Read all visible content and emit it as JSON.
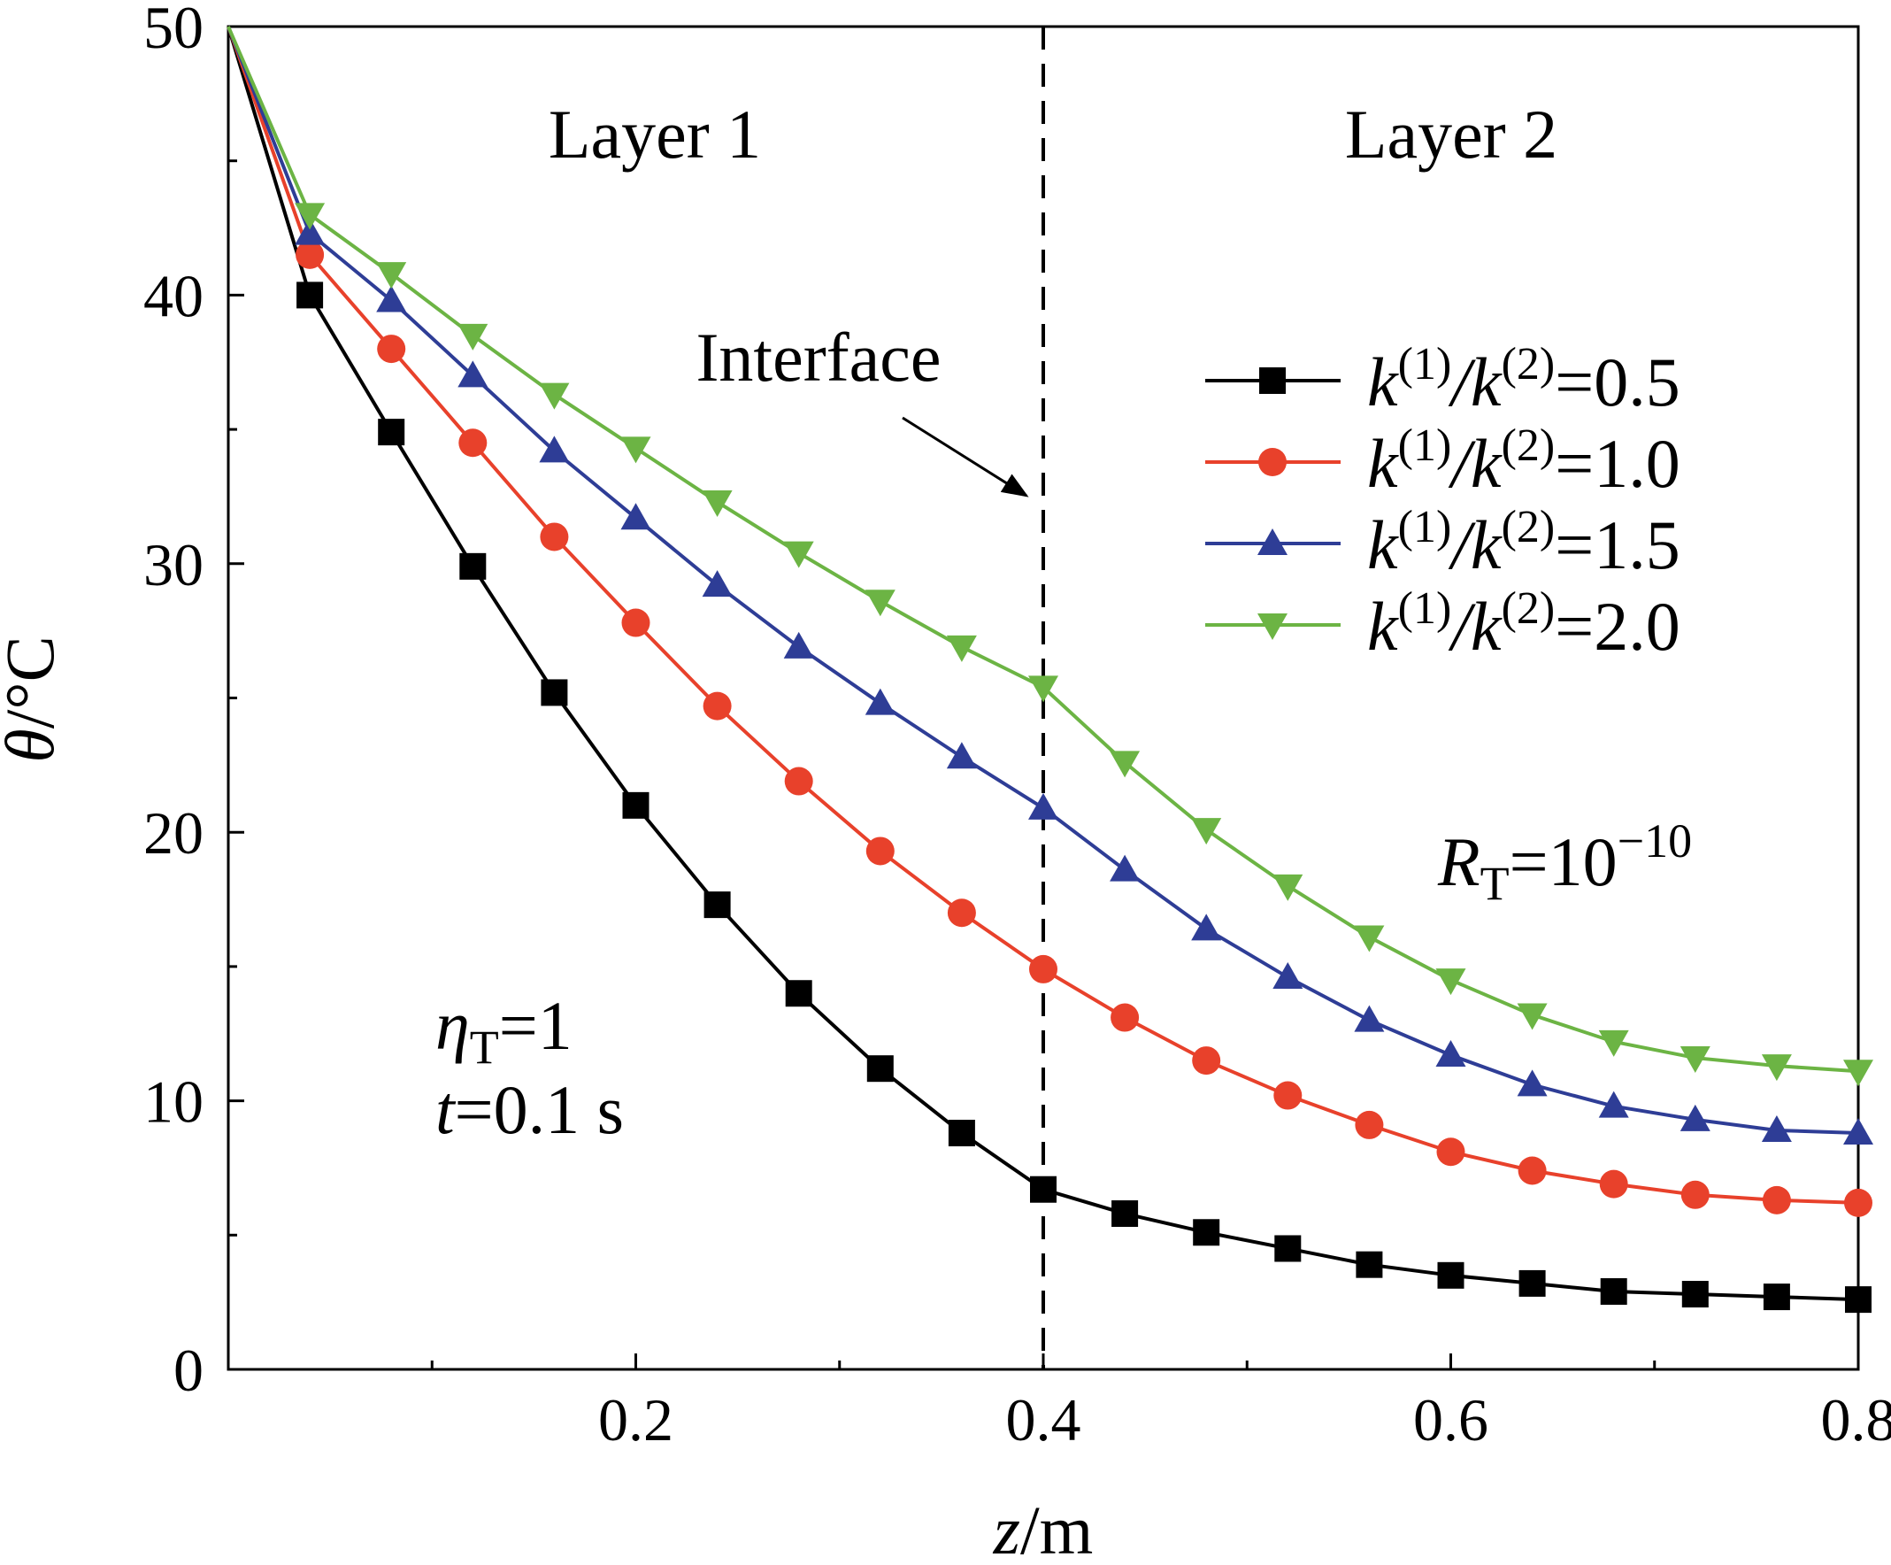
{
  "chart_data": {
    "type": "line",
    "xlim": [
      0,
      0.8
    ],
    "ylim": [
      0,
      50
    ],
    "xlabel": {
      "italic": "z",
      "rest": "/m"
    },
    "ylabel": {
      "italic": "θ",
      "rest": "/°C"
    },
    "xticks": [
      0.2,
      0.4,
      0.6,
      0.8
    ],
    "xtick_labels": [
      "0.2",
      "0.4",
      "0.6",
      "0.8"
    ],
    "yticks": [
      0,
      10,
      20,
      30,
      40,
      50
    ],
    "ytick_labels": [
      "0",
      "10",
      "20",
      "30",
      "40",
      "50"
    ],
    "grid": false,
    "legend_position": "top-right",
    "interface_x": 0.4,
    "x": [
      0,
      0.04,
      0.08,
      0.12,
      0.16,
      0.2,
      0.24,
      0.28,
      0.32,
      0.36,
      0.4,
      0.44,
      0.48,
      0.52,
      0.56,
      0.6,
      0.64,
      0.68,
      0.72,
      0.76,
      0.8
    ],
    "series": [
      {
        "name": "k(1)/k(2)=0.5",
        "legend": {
          "pre": "k",
          "sup1": "(1)",
          "mid": "/k",
          "sup2": "(2)",
          "post": "=0.5"
        },
        "color": "#000000",
        "marker": "square",
        "values": [
          50,
          40.0,
          34.9,
          29.9,
          25.2,
          21.0,
          17.3,
          14.0,
          11.2,
          8.8,
          6.7,
          5.8,
          5.1,
          4.5,
          3.9,
          3.5,
          3.2,
          2.9,
          2.8,
          2.7,
          2.6
        ]
      },
      {
        "name": "k(1)/k(2)=1.0",
        "legend": {
          "pre": "k",
          "sup1": "(1)",
          "mid": "/k",
          "sup2": "(2)",
          "post": "=1.0"
        },
        "color": "#e8412b",
        "marker": "circle",
        "values": [
          50,
          41.5,
          38.0,
          34.5,
          31.0,
          27.8,
          24.7,
          21.9,
          19.3,
          17.0,
          14.9,
          13.1,
          11.5,
          10.2,
          9.1,
          8.1,
          7.4,
          6.9,
          6.5,
          6.3,
          6.2
        ]
      },
      {
        "name": "k(1)/k(2)=1.5",
        "legend": {
          "pre": "k",
          "sup1": "(1)",
          "mid": "/k",
          "sup2": "(2)",
          "post": "=1.5"
        },
        "color": "#2e3d96",
        "marker": "triangle-up",
        "values": [
          50,
          42.3,
          39.8,
          37.0,
          34.2,
          31.7,
          29.2,
          26.9,
          24.8,
          22.8,
          20.9,
          18.6,
          16.4,
          14.6,
          13.0,
          11.7,
          10.6,
          9.8,
          9.3,
          8.9,
          8.8
        ]
      },
      {
        "name": "k(1)/k(2)=2.0",
        "legend": {
          "pre": "k",
          "sup1": "(1)",
          "mid": "/k",
          "sup2": "(2)",
          "post": "=2.0"
        },
        "color": "#6cb444",
        "marker": "triangle-down",
        "values": [
          50,
          43.0,
          40.8,
          38.5,
          36.3,
          34.3,
          32.3,
          30.4,
          28.6,
          26.9,
          25.4,
          22.6,
          20.1,
          18.0,
          16.1,
          14.5,
          13.2,
          12.2,
          11.6,
          11.3,
          11.1
        ]
      }
    ],
    "annotations": {
      "layer1": "Layer 1",
      "layer2": "Layer 2",
      "interface": "Interface",
      "rt": {
        "italic": "R",
        "sub": "T",
        "rest": "=10",
        "sup": "−10"
      },
      "eta": {
        "italic": "η",
        "sub": "T",
        "rest": "=1"
      },
      "time": {
        "italic": "t",
        "rest": "=0.1 s"
      }
    }
  }
}
